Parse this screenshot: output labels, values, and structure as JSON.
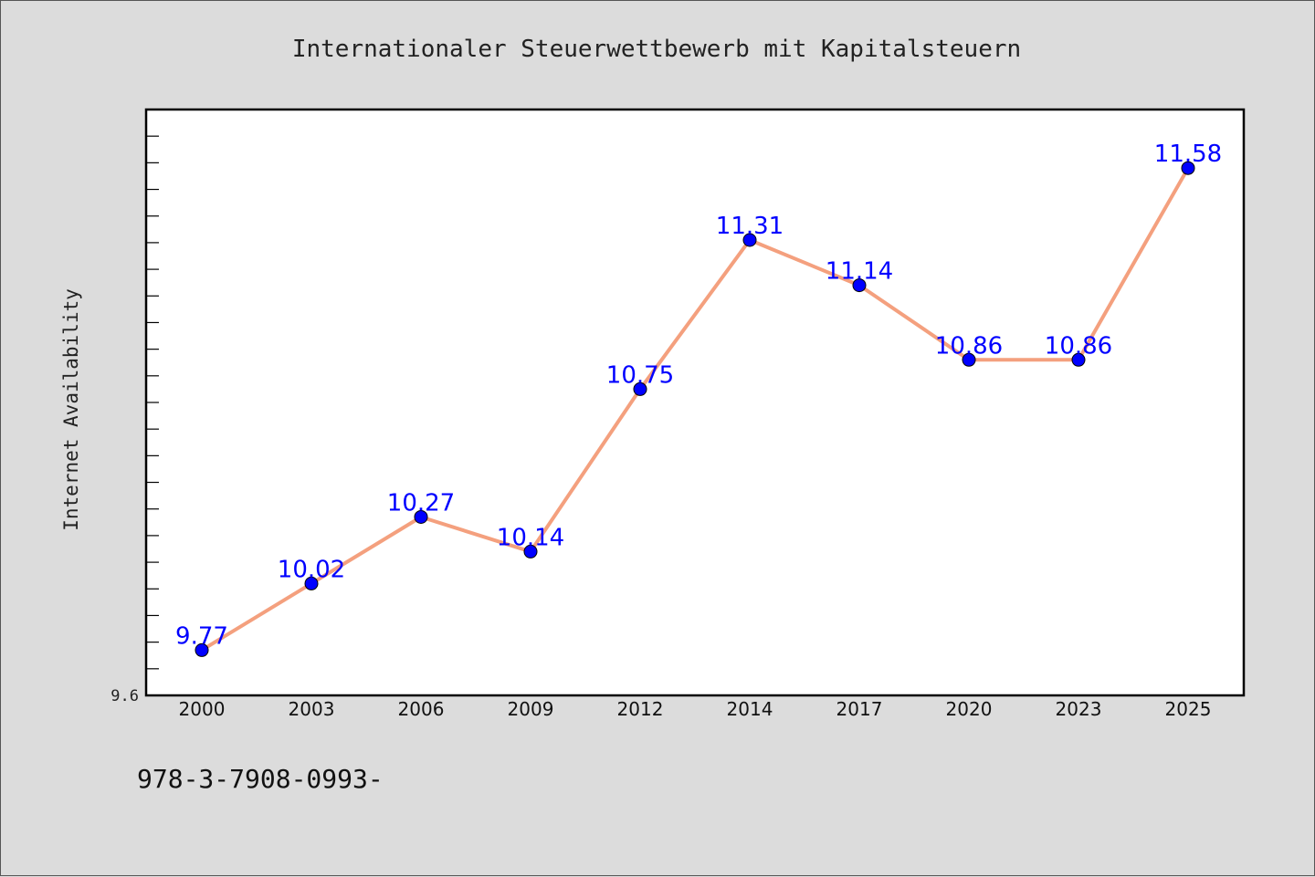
{
  "colors": {
    "background": "#dcdcdc",
    "plot_background": "#ffffff",
    "line": "#f4a07e",
    "marker": "#0000ff",
    "label": "#0000ff"
  },
  "footer": {
    "isbn": "978-3-7908-0993-"
  },
  "chart_data": {
    "type": "line",
    "title": "Internationaler Steuerwettbewerb mit Kapitalsteuern",
    "xlabel": "",
    "ylabel": "Internet Availability",
    "categories": [
      "2000",
      "2003",
      "2006",
      "2009",
      "2012",
      "2014",
      "2017",
      "2020",
      "2023",
      "2025"
    ],
    "series": [
      {
        "values": [
          9.77,
          10.02,
          10.27,
          10.14,
          10.75,
          11.31,
          11.14,
          10.86,
          10.86,
          11.58
        ],
        "labels": [
          "9.77",
          "10.02",
          "10.27",
          "10.14",
          "10.75",
          "11.31",
          "11.14",
          "10.86",
          "10.86",
          "11.58"
        ]
      }
    ],
    "ylim": [
      9.6,
      11.8
    ],
    "ytick_labels": [
      {
        "value": 9.6,
        "label": "9.6"
      }
    ],
    "grid": false,
    "legend": "none"
  }
}
